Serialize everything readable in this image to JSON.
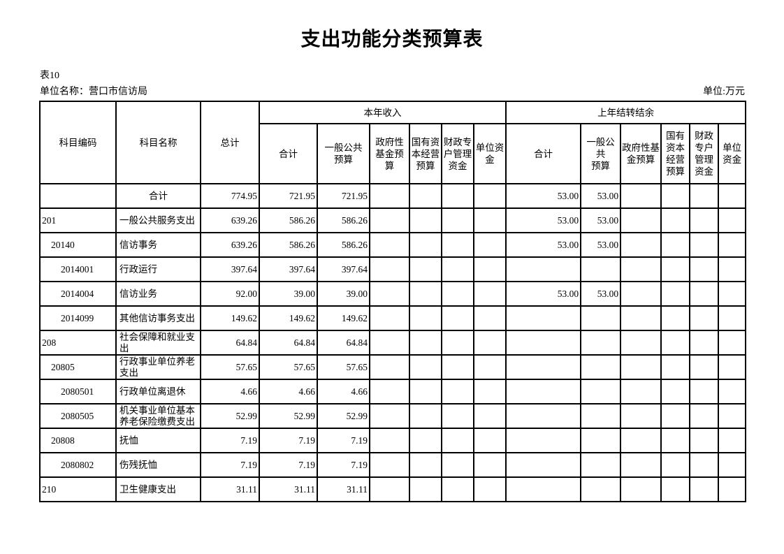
{
  "title": "支出功能分类预算表",
  "meta": {
    "table_no": "表10",
    "unit_name_label": "单位名称：",
    "unit_name": "营口市信访局",
    "unit_of_measure": "单位:万元"
  },
  "table": {
    "header": {
      "code": "科目编码",
      "name": "科目名称",
      "total": "总计",
      "current_year_group": "本年收入",
      "carryover_group": "上年结转结余",
      "sub_columns": [
        "合计",
        "一般公共\n预算",
        "政府性基金预算",
        "国有资本经营预算",
        "财政专户管理资金",
        "单位资金"
      ]
    },
    "rows": [
      {
        "code": "",
        "level": 0,
        "name": "合计",
        "center": true,
        "values": [
          "774.95",
          "721.95",
          "721.95",
          "",
          "",
          "",
          "",
          "53.00",
          "53.00",
          "",
          "",
          "",
          ""
        ]
      },
      {
        "code": "201",
        "level": 0,
        "name": "一般公共服务支出",
        "center": false,
        "values": [
          "639.26",
          "586.26",
          "586.26",
          "",
          "",
          "",
          "",
          "53.00",
          "53.00",
          "",
          "",
          "",
          ""
        ]
      },
      {
        "code": "20140",
        "level": 1,
        "name": "信访事务",
        "center": false,
        "values": [
          "639.26",
          "586.26",
          "586.26",
          "",
          "",
          "",
          "",
          "53.00",
          "53.00",
          "",
          "",
          "",
          ""
        ]
      },
      {
        "code": "2014001",
        "level": 2,
        "name": "行政运行",
        "center": false,
        "values": [
          "397.64",
          "397.64",
          "397.64",
          "",
          "",
          "",
          "",
          "",
          "",
          "",
          "",
          "",
          ""
        ]
      },
      {
        "code": "2014004",
        "level": 2,
        "name": "信访业务",
        "center": false,
        "values": [
          "92.00",
          "39.00",
          "39.00",
          "",
          "",
          "",
          "",
          "53.00",
          "53.00",
          "",
          "",
          "",
          ""
        ]
      },
      {
        "code": "2014099",
        "level": 2,
        "name": "其他信访事务支出",
        "center": false,
        "values": [
          "149.62",
          "149.62",
          "149.62",
          "",
          "",
          "",
          "",
          "",
          "",
          "",
          "",
          "",
          ""
        ]
      },
      {
        "code": "208",
        "level": 0,
        "name": "社会保障和就业支出",
        "center": false,
        "values": [
          "64.84",
          "64.84",
          "64.84",
          "",
          "",
          "",
          "",
          "",
          "",
          "",
          "",
          "",
          ""
        ]
      },
      {
        "code": "20805",
        "level": 1,
        "name": "行政事业单位养老支出",
        "center": false,
        "values": [
          "57.65",
          "57.65",
          "57.65",
          "",
          "",
          "",
          "",
          "",
          "",
          "",
          "",
          "",
          ""
        ]
      },
      {
        "code": "2080501",
        "level": 2,
        "name": "行政单位离退休",
        "center": false,
        "values": [
          "4.66",
          "4.66",
          "4.66",
          "",
          "",
          "",
          "",
          "",
          "",
          "",
          "",
          "",
          ""
        ]
      },
      {
        "code": "2080505",
        "level": 2,
        "name": "机关事业单位基本养老保险缴费支出",
        "center": false,
        "values": [
          "52.99",
          "52.99",
          "52.99",
          "",
          "",
          "",
          "",
          "",
          "",
          "",
          "",
          "",
          ""
        ]
      },
      {
        "code": "20808",
        "level": 1,
        "name": "抚恤",
        "center": false,
        "values": [
          "7.19",
          "7.19",
          "7.19",
          "",
          "",
          "",
          "",
          "",
          "",
          "",
          "",
          "",
          ""
        ]
      },
      {
        "code": "2080802",
        "level": 2,
        "name": "伤残抚恤",
        "center": false,
        "values": [
          "7.19",
          "7.19",
          "7.19",
          "",
          "",
          "",
          "",
          "",
          "",
          "",
          "",
          "",
          ""
        ]
      },
      {
        "code": "210",
        "level": 0,
        "name": "卫生健康支出",
        "center": false,
        "values": [
          "31.11",
          "31.11",
          "31.11",
          "",
          "",
          "",
          "",
          "",
          "",
          "",
          "",
          "",
          ""
        ]
      }
    ]
  }
}
